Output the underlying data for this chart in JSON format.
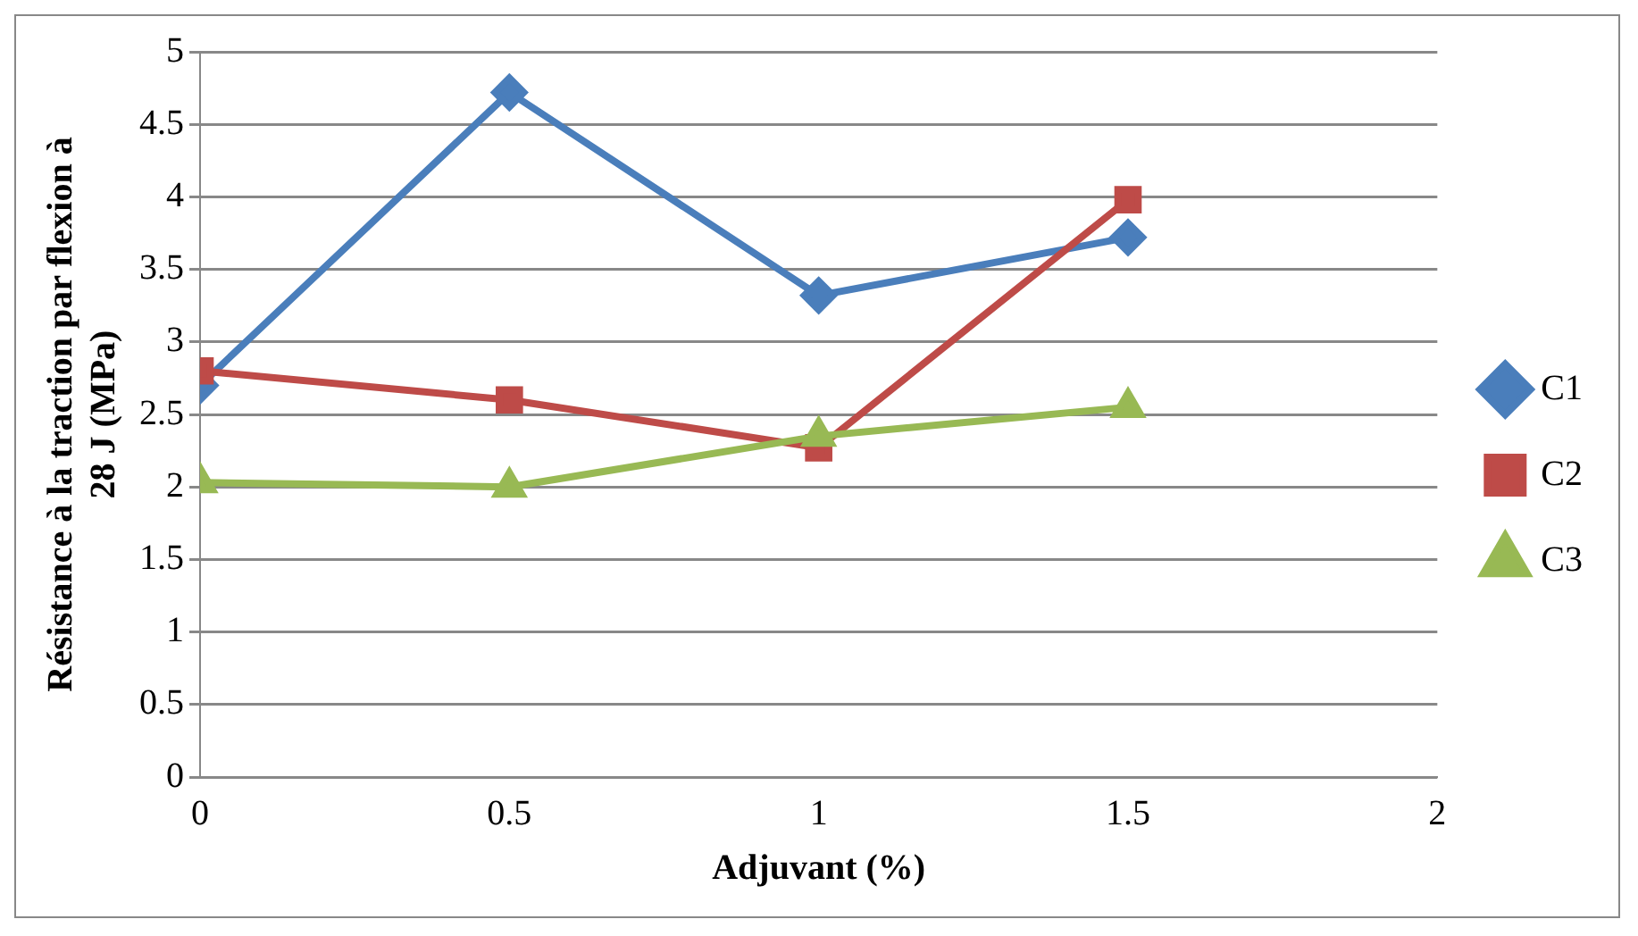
{
  "chart_data": {
    "type": "line",
    "xlabel": "Adjuvant (%)",
    "ylabel": "Résistance à la traction par flexion à 28 J (MPa)",
    "x": [
      0,
      0.5,
      1,
      1.5
    ],
    "series": [
      {
        "name": "C1",
        "color": "#4a7ebb",
        "marker": "diamond",
        "values": [
          2.7,
          4.72,
          3.32,
          3.72
        ]
      },
      {
        "name": "C2",
        "color": "#be4b48",
        "marker": "square",
        "values": [
          2.8,
          2.6,
          2.27,
          3.98
        ]
      },
      {
        "name": "C3",
        "color": "#98b954",
        "marker": "triangle",
        "values": [
          2.03,
          2.0,
          2.35,
          2.55
        ]
      }
    ],
    "xlim": [
      0,
      2
    ],
    "xticks": [
      0,
      0.5,
      1,
      1.5,
      2
    ],
    "ylim": [
      0,
      5
    ],
    "yticks": [
      0,
      0.5,
      1,
      1.5,
      2,
      2.5,
      3,
      3.5,
      4,
      4.5,
      5
    ],
    "grid": "y",
    "legend": "right"
  }
}
